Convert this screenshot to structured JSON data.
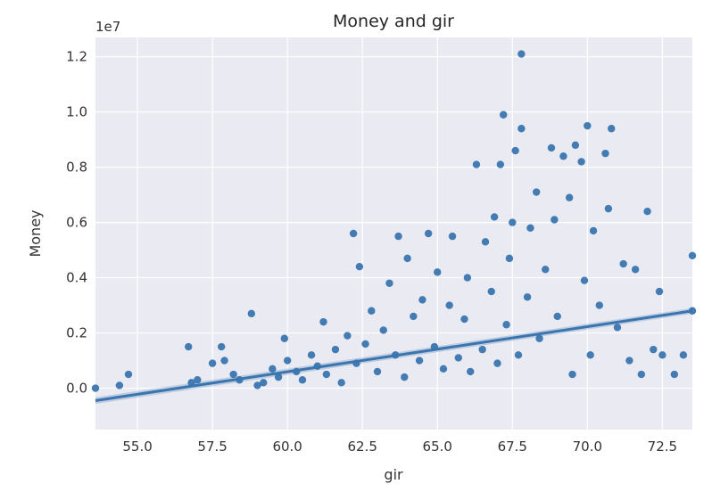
{
  "chart_data": {
    "type": "scatter",
    "title": "Money and gir",
    "xlabel": "gir",
    "ylabel": "Money",
    "y_offset_label": "1e7",
    "xlim": [
      53.6,
      73.5
    ],
    "ylim": [
      -0.15,
      1.27
    ],
    "x_ticks": [
      55.0,
      57.5,
      60.0,
      62.5,
      65.0,
      67.5,
      70.0,
      72.5
    ],
    "x_tick_labels": [
      "55.0",
      "57.5",
      "60.0",
      "62.5",
      "65.0",
      "67.5",
      "70.0",
      "72.5"
    ],
    "y_ticks": [
      0.0,
      0.2,
      0.4,
      0.6,
      0.8,
      1.0,
      1.2
    ],
    "y_tick_labels": [
      "0.0",
      "0.2",
      "0.4",
      "0.6",
      "0.8",
      "1.0",
      "1.2"
    ],
    "grid": true,
    "series": [
      {
        "points": [
          [
            53.6,
            0.0
          ],
          [
            54.4,
            0.01
          ],
          [
            54.7,
            0.05
          ],
          [
            56.7,
            0.15
          ],
          [
            56.8,
            0.02
          ],
          [
            57.0,
            0.03
          ],
          [
            57.5,
            0.09
          ],
          [
            57.8,
            0.15
          ],
          [
            57.9,
            0.1
          ],
          [
            58.2,
            0.05
          ],
          [
            58.4,
            0.03
          ],
          [
            58.8,
            0.27
          ],
          [
            59.0,
            0.01
          ],
          [
            59.2,
            0.02
          ],
          [
            59.5,
            0.07
          ],
          [
            59.7,
            0.04
          ],
          [
            59.9,
            0.18
          ],
          [
            60.0,
            0.1
          ],
          [
            60.3,
            0.06
          ],
          [
            60.5,
            0.03
          ],
          [
            60.8,
            0.12
          ],
          [
            61.0,
            0.08
          ],
          [
            61.2,
            0.24
          ],
          [
            61.3,
            0.05
          ],
          [
            61.6,
            0.14
          ],
          [
            61.8,
            0.02
          ],
          [
            62.0,
            0.19
          ],
          [
            62.2,
            0.56
          ],
          [
            62.3,
            0.09
          ],
          [
            62.4,
            0.44
          ],
          [
            62.6,
            0.16
          ],
          [
            62.8,
            0.28
          ],
          [
            63.0,
            0.06
          ],
          [
            63.2,
            0.21
          ],
          [
            63.4,
            0.38
          ],
          [
            63.6,
            0.12
          ],
          [
            63.7,
            0.55
          ],
          [
            63.9,
            0.04
          ],
          [
            64.0,
            0.47
          ],
          [
            64.2,
            0.26
          ],
          [
            64.4,
            0.1
          ],
          [
            64.5,
            0.32
          ],
          [
            64.7,
            0.56
          ],
          [
            64.9,
            0.15
          ],
          [
            65.0,
            0.42
          ],
          [
            65.2,
            0.07
          ],
          [
            65.4,
            0.3
          ],
          [
            65.5,
            0.55
          ],
          [
            65.7,
            0.11
          ],
          [
            65.9,
            0.25
          ],
          [
            66.0,
            0.4
          ],
          [
            66.1,
            0.06
          ],
          [
            66.3,
            0.81
          ],
          [
            66.5,
            0.14
          ],
          [
            66.6,
            0.53
          ],
          [
            66.8,
            0.35
          ],
          [
            66.9,
            0.62
          ],
          [
            67.0,
            0.09
          ],
          [
            67.1,
            0.81
          ],
          [
            67.2,
            0.99
          ],
          [
            67.3,
            0.23
          ],
          [
            67.4,
            0.47
          ],
          [
            67.5,
            0.6
          ],
          [
            67.6,
            0.86
          ],
          [
            67.7,
            0.12
          ],
          [
            67.8,
            1.21
          ],
          [
            67.8,
            0.94
          ],
          [
            68.0,
            0.33
          ],
          [
            68.1,
            0.58
          ],
          [
            68.3,
            0.71
          ],
          [
            68.4,
            0.18
          ],
          [
            68.6,
            0.43
          ],
          [
            68.8,
            0.87
          ],
          [
            68.9,
            0.61
          ],
          [
            69.0,
            0.26
          ],
          [
            69.2,
            0.84
          ],
          [
            69.4,
            0.69
          ],
          [
            69.5,
            0.05
          ],
          [
            69.6,
            0.88
          ],
          [
            69.8,
            0.82
          ],
          [
            69.9,
            0.39
          ],
          [
            70.0,
            0.95
          ],
          [
            70.1,
            0.12
          ],
          [
            70.2,
            0.57
          ],
          [
            70.4,
            0.3
          ],
          [
            70.6,
            0.85
          ],
          [
            70.7,
            0.65
          ],
          [
            70.8,
            0.94
          ],
          [
            71.0,
            0.22
          ],
          [
            71.2,
            0.45
          ],
          [
            71.4,
            0.1
          ],
          [
            71.6,
            0.43
          ],
          [
            71.8,
            0.05
          ],
          [
            72.0,
            0.64
          ],
          [
            72.2,
            0.14
          ],
          [
            72.4,
            0.35
          ],
          [
            72.5,
            0.12
          ],
          [
            72.9,
            0.05
          ],
          [
            73.2,
            0.12
          ],
          [
            73.5,
            0.48
          ],
          [
            73.5,
            0.28
          ]
        ]
      }
    ],
    "regression": {
      "x": [
        53.6,
        73.5
      ],
      "y": [
        -0.045,
        0.28
      ]
    }
  }
}
